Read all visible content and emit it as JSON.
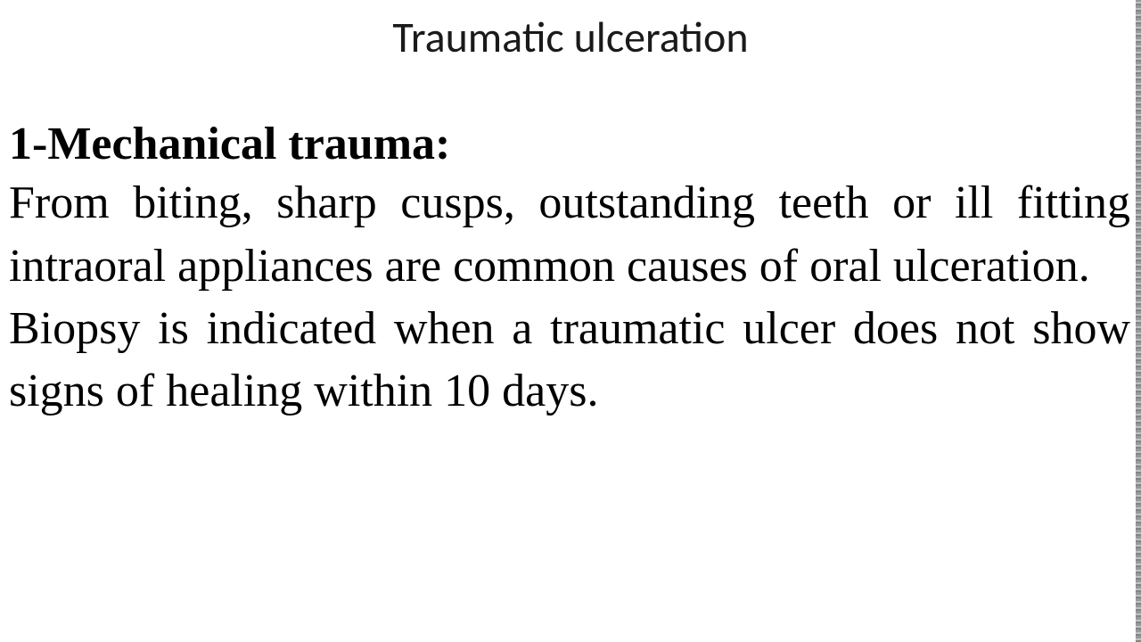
{
  "slide": {
    "title": "Traumatic ulceration",
    "heading": "1-Mechanical trauma:",
    "paragraph1": "From biting, sharp cusps, outstanding teeth or ill fitting intraoral appliances are common causes of oral ulceration.",
    "paragraph2": "Biopsy is indicated when a traumatic ulcer does not show signs of healing within 10 days.",
    "styling": {
      "background_color": "#ffffff",
      "text_color": "#000000",
      "title_font": "Calibri",
      "title_fontsize": 48,
      "title_weight": "normal",
      "body_font": "Times New Roman",
      "heading_fontsize": 52,
      "heading_weight": "bold",
      "paragraph_fontsize": 52,
      "paragraph_weight": "normal",
      "text_align_body": "justify",
      "line_height": 1.35
    }
  }
}
